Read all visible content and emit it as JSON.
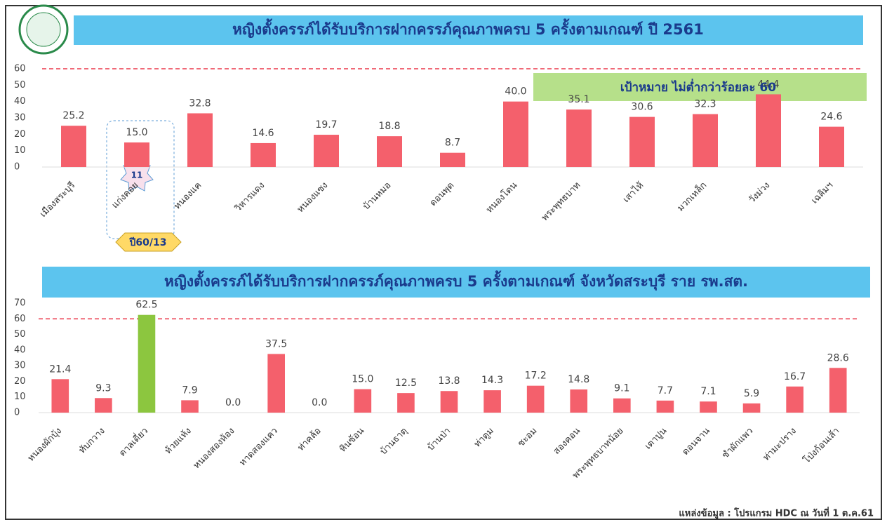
{
  "chart_data": [
    {
      "type": "bar",
      "title": "หญิงตั้งครรภ์ได้รับบริการฝากครรภ์คุณภาพครบ 5 ครั้งตามเกณฑ์ ปี 2561",
      "categories": [
        "เมืองสระบุรี",
        "แก่งคอย",
        "หนองแค",
        "วิหารแดง",
        "หนองแซง",
        "บ้านหมอ",
        "ดอนพุด",
        "หนองโดน",
        "พระพุทธบาท",
        "เสาไห้",
        "มวกเหล็ก",
        "วังม่วง",
        "เฉลิมฯ"
      ],
      "values": [
        25.2,
        15,
        32.8,
        14.6,
        19.7,
        18.8,
        8.7,
        40,
        35.1,
        30.6,
        32.3,
        44.4,
        24.6
      ],
      "value_labels": [
        "25.2",
        "15.0",
        "32.8",
        "14.6",
        "19.7",
        "18.8",
        "8.7",
        "40.0",
        "35.1",
        "30.6",
        "32.3",
        "44.4",
        "24.6"
      ],
      "color": "#f4606c",
      "ylim": [
        0,
        60
      ],
      "yticks": [
        0,
        10,
        20,
        30,
        40,
        50,
        60
      ],
      "target": 60,
      "target_color": "#f06a78",
      "annotation": "เป้าหมาย ไม่ต่ำกว่าร้อยละ 60",
      "badge": "11",
      "badge_note": "ปี60/13"
    },
    {
      "type": "bar",
      "title": "หญิงตั้งครรภ์ได้รับบริการฝากครรภ์คุณภาพครบ 5 ครั้งตามเกณฑ์  จังหวัดสระบุรี  ราย รพ.สต.",
      "categories": [
        "หนองผักบุ้ง",
        "ทับกวาง",
        "ตาลเดี่ยว",
        "ห้วยแห้ง",
        "หนองสองห้อง",
        "หาดสองแคว",
        "ท่าคล้อ",
        "หินซ้อน",
        "บ้านธาตุ",
        "บ้านป่า",
        "ท่าตูม",
        "ชะอม",
        "สองคอน",
        "พระพุทธบาทน้อย",
        "เตาปูน",
        "ดอนจาน",
        "ชำผักแพว",
        "ท่ามะปราง",
        "โป่งก้อนเส้า"
      ],
      "values": [
        21.4,
        9.3,
        62.5,
        7.9,
        0,
        37.5,
        0,
        15,
        12.5,
        13.8,
        14.3,
        17.2,
        14.8,
        9.1,
        7.7,
        7.1,
        5.9,
        16.7,
        28.6
      ],
      "value_labels": [
        "21.4",
        "9.3",
        "62.5",
        "7.9",
        "0.0",
        "37.5",
        "0.0",
        "15.0",
        "12.5",
        "13.8",
        "14.3",
        "17.2",
        "14.8",
        "9.1",
        "7.7",
        "7.1",
        "5.9",
        "16.7",
        "28.6"
      ],
      "colors": [
        "#f4606c",
        "#f4606c",
        "#8cc63f",
        "#f4606c",
        "#f4606c",
        "#f4606c",
        "#f4606c",
        "#f4606c",
        "#f4606c",
        "#f4606c",
        "#f4606c",
        "#f4606c",
        "#f4606c",
        "#f4606c",
        "#f4606c",
        "#f4606c",
        "#f4606c",
        "#f4606c",
        "#f4606c"
      ],
      "ylim": [
        0,
        70
      ],
      "yticks": [
        0,
        10,
        20,
        30,
        40,
        50,
        60,
        70
      ],
      "target": 60,
      "target_color": "#f06a78"
    }
  ],
  "source": "แหล่งข้อมูล : โปรแกรม HDC ณ วันที่ 1 ต.ค.61"
}
